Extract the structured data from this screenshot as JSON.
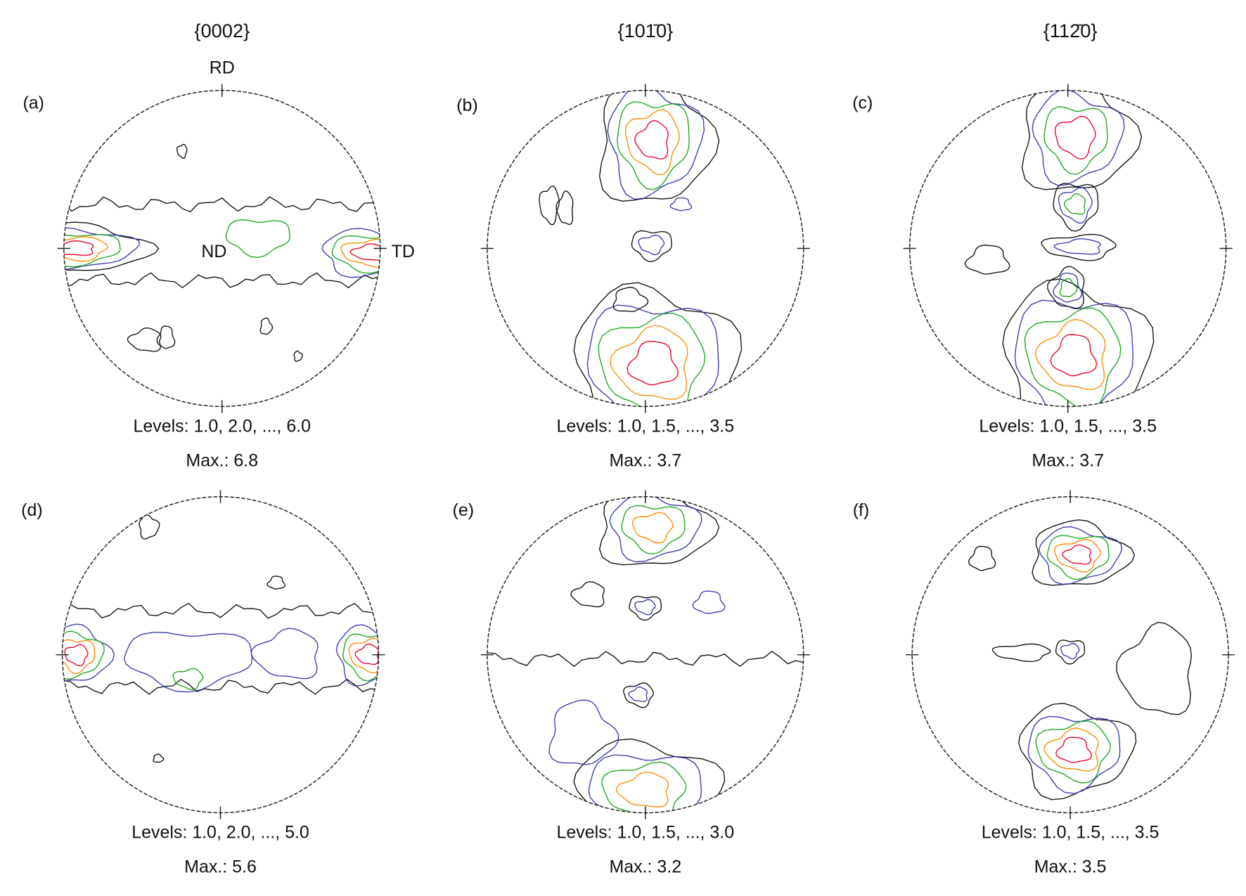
{
  "columns": [
    "{0002}",
    "{101̄0}",
    "{112̄0}"
  ],
  "axis_labels": {
    "rd": "RD",
    "td": "TD",
    "nd": "ND"
  },
  "panels": [
    {
      "label": "(a)",
      "levels": "Levels: 1.0, 2.0, ..., 6.0",
      "max": "Max.: 6.8"
    },
    {
      "label": "(b)",
      "levels": "Levels: 1.0, 1.5, ..., 3.5",
      "max": "Max.: 3.7"
    },
    {
      "label": "(c)",
      "levels": "Levels: 1.0, 1.5, ..., 3.5",
      "max": "Max.: 3.7"
    },
    {
      "label": "(d)",
      "levels": "Levels: 1.0, 2.0, ..., 5.0",
      "max": "Max.: 5.6"
    },
    {
      "label": "(e)",
      "levels": "Levels: 1.0, 1.5, ..., 3.0",
      "max": "Max.: 3.2"
    },
    {
      "label": "(f)",
      "levels": "Levels: 1.0, 1.5, ..., 3.5",
      "max": "Max.: 3.5"
    }
  ]
}
